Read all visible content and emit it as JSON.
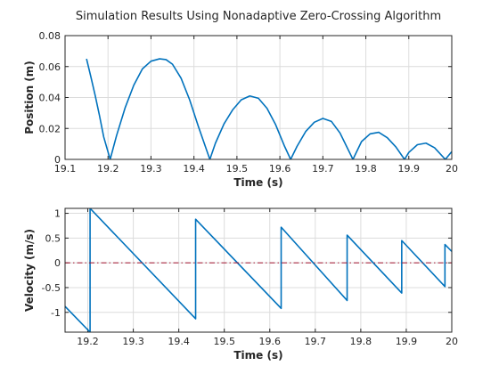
{
  "figure": {
    "title": "Simulation Results Using Nonadaptive Zero-Crossing Algorithm"
  },
  "colors": {
    "series": "#0072bd",
    "reference": "#a2142f",
    "grid": "#dcdcdc",
    "axis": "#262626",
    "background": "#ffffff"
  },
  "chart_data": [
    {
      "type": "line",
      "title": "Simulation Results Using Nonadaptive Zero-Crossing Algorithm",
      "xlabel": "Time (s)",
      "ylabel": "Position (m)",
      "xlim": [
        19.1,
        20.0
      ],
      "ylim": [
        0,
        0.08
      ],
      "xticks": [
        "19.1",
        "19.2",
        "19.3",
        "19.4",
        "19.5",
        "19.6",
        "19.7",
        "19.8",
        "19.9",
        "20"
      ],
      "yticks": [
        "0",
        "0.02",
        "0.04",
        "0.06",
        "0.08"
      ],
      "grid": true,
      "series": [
        {
          "x": [
            19.15,
            19.16,
            19.17,
            19.18,
            19.19,
            19.205,
            19.22,
            19.24,
            19.26,
            19.28,
            19.3,
            19.32,
            19.335,
            19.35,
            19.37,
            19.39,
            19.41,
            19.437,
            19.45,
            19.47,
            19.49,
            19.51,
            19.53,
            19.55,
            19.57,
            19.59,
            19.61,
            19.625,
            19.64,
            19.66,
            19.68,
            19.7,
            19.72,
            19.74,
            19.77,
            19.79,
            19.81,
            19.83,
            19.85,
            19.87,
            19.89,
            19.9,
            19.92,
            19.94,
            19.96,
            19.985,
            20.0
          ],
          "y": [
            0.065,
            0.0535,
            0.0415,
            0.0285,
            0.0145,
            0.0,
            0.0155,
            0.0335,
            0.048,
            0.0585,
            0.0635,
            0.065,
            0.0645,
            0.0615,
            0.0525,
            0.0385,
            0.0215,
            0.0,
            0.0105,
            0.023,
            0.032,
            0.0385,
            0.041,
            0.0395,
            0.033,
            0.0225,
            0.009,
            0.0,
            0.0085,
            0.018,
            0.024,
            0.0265,
            0.0245,
            0.017,
            0.0,
            0.0115,
            0.0165,
            0.0175,
            0.014,
            0.008,
            0.0,
            0.0045,
            0.0095,
            0.0105,
            0.0075,
            0.0,
            0.005
          ]
        }
      ]
    },
    {
      "type": "line",
      "xlabel": "Time (s)",
      "ylabel": "Velocity (m/s)",
      "xlim": [
        19.15,
        20.0
      ],
      "ylim": [
        -1.4,
        1.1
      ],
      "xticks": [
        "19.2",
        "19.3",
        "19.4",
        "19.5",
        "19.6",
        "19.7",
        "19.8",
        "19.9",
        "20"
      ],
      "yticks": [
        "-1",
        "-0.5",
        "0",
        "0.5",
        "1"
      ],
      "grid": true,
      "series": [
        {
          "x": [
            19.15,
            19.205,
            19.205,
            19.437,
            19.437,
            19.625,
            19.625,
            19.77,
            19.77,
            19.89,
            19.89,
            19.985,
            19.985,
            20.0
          ],
          "y": [
            -0.88,
            -1.4,
            1.1,
            -1.13,
            0.88,
            -0.92,
            0.72,
            -0.76,
            0.56,
            -0.61,
            0.45,
            -0.48,
            0.37,
            0.23
          ]
        },
        {
          "x": [
            19.15,
            20.0
          ],
          "y": [
            0,
            0
          ]
        }
      ]
    }
  ]
}
